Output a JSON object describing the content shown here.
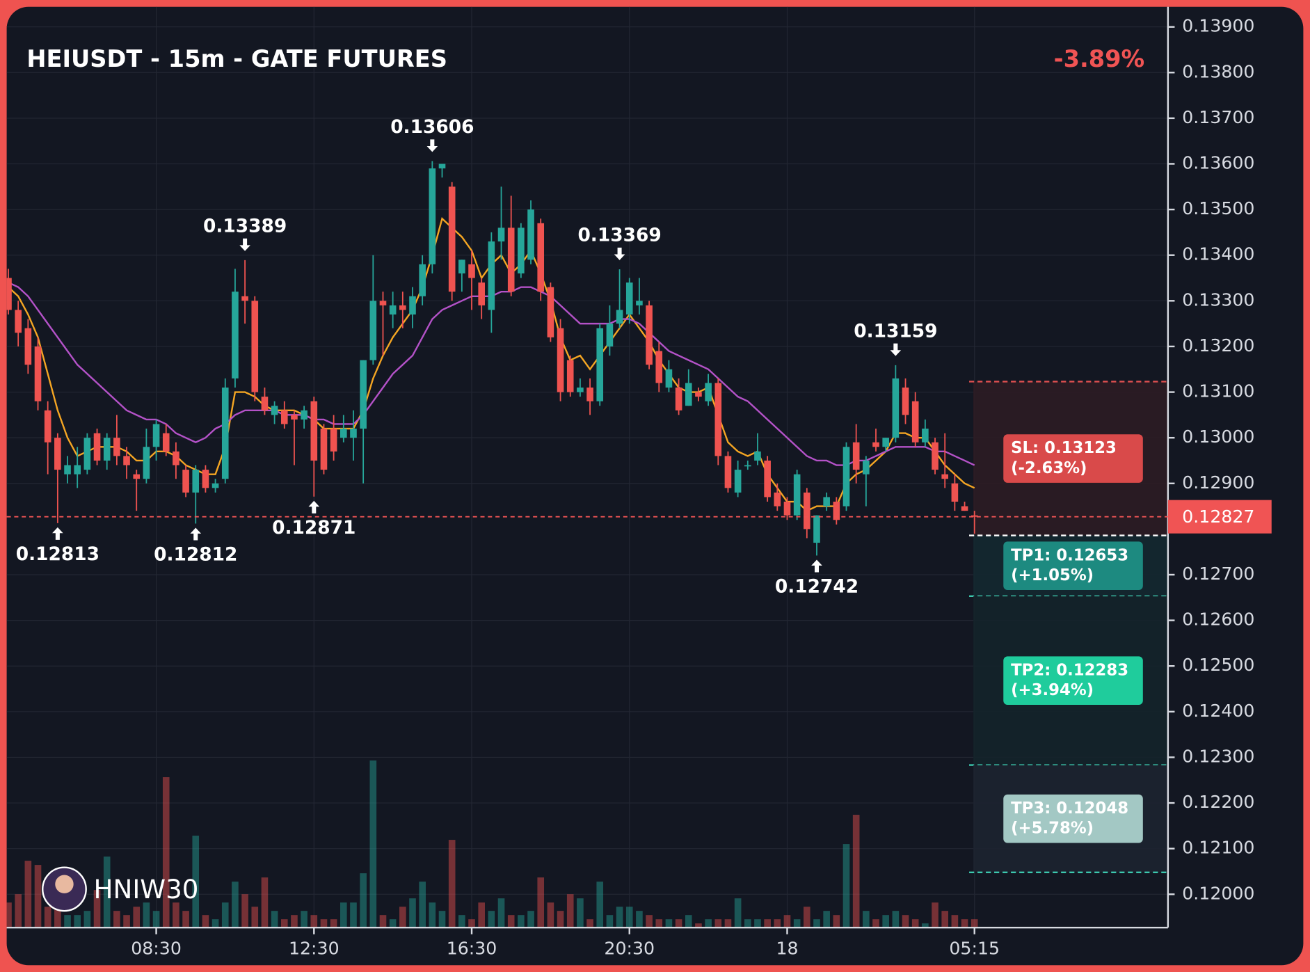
{
  "chart_data": {
    "type": "candlestick",
    "title": "HEIUSDT - 15m - GATE FUTURES",
    "change": "-3.89%",
    "watermark": "HNIW30",
    "up_color": "#26a69a",
    "down_color": "#ef5350",
    "grid": true,
    "ylim": [
      0.11927,
      0.13944
    ],
    "yticks": [
      {
        "value": 0.139,
        "label": "0.13900"
      },
      {
        "value": 0.138,
        "label": "0.13800"
      },
      {
        "value": 0.137,
        "label": "0.13700"
      },
      {
        "value": 0.136,
        "label": "0.13600"
      },
      {
        "value": 0.135,
        "label": "0.13500"
      },
      {
        "value": 0.134,
        "label": "0.13400"
      },
      {
        "value": 0.133,
        "label": "0.13300"
      },
      {
        "value": 0.132,
        "label": "0.13200"
      },
      {
        "value": 0.131,
        "label": "0.13100"
      },
      {
        "value": 0.13,
        "label": "0.13000"
      },
      {
        "value": 0.129,
        "label": "0.12900"
      },
      {
        "value": 0.127,
        "label": "0.12700"
      },
      {
        "value": 0.126,
        "label": "0.12600"
      },
      {
        "value": 0.125,
        "label": "0.12500"
      },
      {
        "value": 0.124,
        "label": "0.12400"
      },
      {
        "value": 0.123,
        "label": "0.12300"
      },
      {
        "value": 0.122,
        "label": "0.12200"
      },
      {
        "value": 0.121,
        "label": "0.12100"
      },
      {
        "value": 0.12,
        "label": "0.12000"
      }
    ],
    "categories": [
      null,
      null,
      null,
      null,
      null,
      null,
      null,
      null,
      null,
      null,
      null,
      null,
      null,
      null,
      null,
      "08:30",
      null,
      null,
      null,
      null,
      null,
      null,
      null,
      null,
      null,
      null,
      null,
      null,
      null,
      null,
      null,
      "12:30",
      null,
      null,
      null,
      null,
      null,
      null,
      null,
      null,
      null,
      null,
      null,
      null,
      null,
      null,
      null,
      "16:30",
      null,
      null,
      null,
      null,
      null,
      null,
      null,
      null,
      null,
      null,
      null,
      null,
      null,
      null,
      null,
      "20:30",
      null,
      null,
      null,
      null,
      null,
      null,
      null,
      null,
      null,
      null,
      null,
      null,
      null,
      null,
      null,
      "18",
      null,
      null,
      null,
      null,
      null,
      null,
      null,
      null,
      null,
      null,
      null,
      null,
      null,
      null,
      null,
      null,
      null,
      null,
      "05:15"
    ],
    "open": [
      0.1335,
      0.1328,
      0.1324,
      0.132,
      0.1306,
      0.13,
      0.1292,
      0.1292,
      0.1293,
      0.1301,
      0.1295,
      0.13,
      0.1296,
      0.1292,
      0.1291,
      0.1298,
      0.1301,
      0.1297,
      0.1293,
      0.1288,
      0.1293,
      0.1289,
      0.1291,
      0.1313,
      0.1331,
      0.133,
      0.1309,
      0.1305,
      0.1306,
      0.1305,
      0.1304,
      0.1308,
      0.1302,
      0.1302,
      0.13,
      0.13,
      0.1302,
      0.1317,
      0.133,
      0.1327,
      0.1329,
      0.1327,
      0.1331,
      0.1338,
      0.1359,
      0.1355,
      0.1336,
      0.1338,
      0.1334,
      0.1328,
      0.1343,
      0.1346,
      0.1336,
      0.1339,
      0.1347,
      0.1333,
      0.1324,
      0.1317,
      0.131,
      0.1311,
      0.1308,
      0.132,
      0.1325,
      0.1327,
      0.1329,
      0.1329,
      0.1319,
      0.1311,
      0.1311,
      0.1307,
      0.131,
      0.1308,
      0.1312,
      0.1296,
      0.1288,
      0.1294,
      0.1295,
      0.1295,
      0.1288,
      0.1286,
      0.1283,
      0.1288,
      0.1277,
      0.1285,
      0.1286,
      0.1285,
      0.1299,
      0.1292,
      0.1299,
      0.1298,
      0.13,
      0.1311,
      0.1308,
      0.1299,
      0.1299,
      0.1292,
      0.129,
      0.1285,
      0.1283
    ],
    "high": [
      0.1337,
      0.133,
      0.1326,
      0.1322,
      0.1308,
      0.1301,
      0.1296,
      0.1298,
      0.1301,
      0.1302,
      0.1301,
      0.1305,
      0.1298,
      0.1293,
      0.1302,
      0.1304,
      0.1303,
      0.1299,
      0.1294,
      0.1294,
      0.1294,
      0.1291,
      0.1313,
      0.1337,
      0.13389,
      0.1331,
      0.1311,
      0.1308,
      0.1308,
      0.1306,
      0.1307,
      0.1309,
      0.1303,
      0.1305,
      0.1305,
      0.1306,
      0.1317,
      0.134,
      0.1332,
      0.1332,
      0.1332,
      0.1333,
      0.134,
      0.13606,
      0.136,
      0.1356,
      0.1339,
      0.1341,
      0.1335,
      0.1345,
      0.1355,
      0.1353,
      0.1347,
      0.1352,
      0.1348,
      0.1334,
      0.1326,
      0.1318,
      0.1313,
      0.1313,
      0.1325,
      0.1329,
      0.13369,
      0.1335,
      0.1335,
      0.133,
      0.1321,
      0.1317,
      0.1313,
      0.1315,
      0.1311,
      0.1314,
      0.1313,
      0.1297,
      0.1295,
      0.1295,
      0.1301,
      0.1296,
      0.129,
      0.1287,
      0.1293,
      0.1289,
      0.1283,
      0.1288,
      0.1287,
      0.1299,
      0.1303,
      0.1296,
      0.1302,
      0.13,
      0.13159,
      0.1313,
      0.131,
      0.1304,
      0.13,
      0.1301,
      0.1292,
      0.1286,
      0.1284
    ],
    "low": [
      0.1327,
      0.132,
      0.1314,
      0.1306,
      0.1292,
      0.12813,
      0.129,
      0.1289,
      0.1292,
      0.1294,
      0.1293,
      0.1294,
      0.1291,
      0.1284,
      0.129,
      0.1295,
      0.1296,
      0.1291,
      0.1287,
      0.12812,
      0.1288,
      0.1288,
      0.129,
      0.1311,
      0.1325,
      0.1308,
      0.1305,
      0.1303,
      0.1302,
      0.1294,
      0.1302,
      0.12871,
      0.1292,
      0.1295,
      0.1299,
      0.1295,
      0.129,
      0.1316,
      0.1318,
      0.1324,
      0.1324,
      0.1324,
      0.1329,
      0.1336,
      0.1357,
      0.133,
      0.1332,
      0.1328,
      0.1326,
      0.1323,
      0.1339,
      0.1331,
      0.1335,
      0.1338,
      0.133,
      0.1321,
      0.1308,
      0.1309,
      0.1309,
      0.1305,
      0.1307,
      0.1318,
      0.1324,
      0.1325,
      0.1327,
      0.1315,
      0.131,
      0.131,
      0.1305,
      0.1307,
      0.1308,
      0.1307,
      0.1294,
      0.1288,
      0.1287,
      0.1293,
      0.1294,
      0.1286,
      0.1284,
      0.1282,
      0.1282,
      0.1278,
      0.12742,
      0.1284,
      0.1281,
      0.1284,
      0.129,
      0.1285,
      0.1297,
      0.1297,
      0.1299,
      0.1303,
      0.1298,
      0.1298,
      0.1292,
      0.1289,
      0.1284,
      0.1284,
      0.1279
    ],
    "close": [
      0.1328,
      0.1323,
      0.1316,
      0.1308,
      0.1299,
      0.1293,
      0.1294,
      0.1294,
      0.13,
      0.1295,
      0.13,
      0.1296,
      0.1294,
      0.1291,
      0.1298,
      0.1303,
      0.1297,
      0.1294,
      0.1288,
      0.1293,
      0.1289,
      0.129,
      0.1311,
      0.1332,
      0.133,
      0.131,
      0.1306,
      0.1307,
      0.1303,
      0.1304,
      0.1306,
      0.1295,
      0.1293,
      0.1297,
      0.1302,
      0.1302,
      0.1317,
      0.133,
      0.1329,
      0.1329,
      0.1328,
      0.1331,
      0.1338,
      0.1359,
      0.136,
      0.1332,
      0.1339,
      0.1335,
      0.1329,
      0.1343,
      0.1346,
      0.1332,
      0.1346,
      0.135,
      0.1332,
      0.1322,
      0.131,
      0.131,
      0.1311,
      0.1308,
      0.1324,
      0.1325,
      0.1328,
      0.1334,
      0.133,
      0.1316,
      0.1312,
      0.1315,
      0.1306,
      0.1312,
      0.1309,
      0.1312,
      0.1296,
      0.1289,
      0.1293,
      0.1294,
      0.1297,
      0.1287,
      0.1285,
      0.1283,
      0.1292,
      0.128,
      0.1283,
      0.1287,
      0.1282,
      0.1298,
      0.1293,
      0.1295,
      0.1298,
      0.13,
      0.1313,
      0.1305,
      0.1299,
      0.1302,
      0.1293,
      0.1291,
      0.1286,
      0.1284,
      0.12827
    ],
    "volume": [
      30,
      40,
      80,
      75,
      25,
      30,
      15,
      15,
      20,
      45,
      85,
      20,
      15,
      25,
      30,
      20,
      180,
      30,
      20,
      110,
      15,
      10,
      30,
      55,
      40,
      25,
      60,
      20,
      10,
      15,
      20,
      15,
      10,
      10,
      30,
      30,
      65,
      200,
      15,
      10,
      25,
      35,
      55,
      30,
      20,
      105,
      15,
      10,
      30,
      20,
      35,
      15,
      15,
      20,
      60,
      30,
      20,
      40,
      35,
      10,
      55,
      15,
      25,
      25,
      20,
      15,
      10,
      10,
      10,
      15,
      5,
      10,
      10,
      10,
      35,
      10,
      10,
      10,
      10,
      15,
      10,
      25,
      10,
      20,
      15,
      100,
      135,
      20,
      10,
      15,
      20,
      15,
      10,
      5,
      30,
      20,
      15,
      10,
      10
    ],
    "overlays": [
      {
        "color": "#f5a623",
        "values": [
          0.1333,
          0.1331,
          0.1327,
          0.1322,
          0.1314,
          0.1306,
          0.13,
          0.1296,
          0.1297,
          0.1298,
          0.1298,
          0.1298,
          0.1297,
          0.1295,
          0.1295,
          0.1297,
          0.1297,
          0.1296,
          0.1294,
          0.1293,
          0.1292,
          0.1292,
          0.1298,
          0.131,
          0.131,
          0.1309,
          0.1307,
          0.1306,
          0.1306,
          0.1306,
          0.1305,
          0.1304,
          0.1302,
          0.1302,
          0.1302,
          0.1302,
          0.1306,
          0.1313,
          0.1318,
          0.1322,
          0.1325,
          0.1328,
          0.1333,
          0.134,
          0.1348,
          0.1346,
          0.1344,
          0.1341,
          0.1335,
          0.1338,
          0.134,
          0.1336,
          0.1338,
          0.1341,
          0.1336,
          0.133,
          0.1322,
          0.1317,
          0.1318,
          0.1315,
          0.1318,
          0.1321,
          0.1324,
          0.1327,
          0.1324,
          0.1321,
          0.1317,
          0.1314,
          0.1311,
          0.131,
          0.131,
          0.1311,
          0.1305,
          0.1299,
          0.1297,
          0.1296,
          0.1297,
          0.1292,
          0.1289,
          0.1286,
          0.1286,
          0.1284,
          0.1285,
          0.1285,
          0.1285,
          0.129,
          0.1292,
          0.1293,
          0.1295,
          0.1297,
          0.1301,
          0.1301,
          0.13,
          0.13,
          0.1297,
          0.1294,
          0.1292,
          0.129,
          0.1289
        ]
      },
      {
        "color": "#b452c8",
        "values": [
          0.1334,
          0.1333,
          0.1331,
          0.1328,
          0.1325,
          0.1322,
          0.1319,
          0.1316,
          0.1314,
          0.1312,
          0.131,
          0.1308,
          0.1306,
          0.1305,
          0.1304,
          0.1304,
          0.1303,
          0.1301,
          0.13,
          0.1299,
          0.13,
          0.1302,
          0.1303,
          0.1305,
          0.1306,
          0.1306,
          0.1306,
          0.1306,
          0.1305,
          0.1305,
          0.1305,
          0.1304,
          0.1304,
          0.1303,
          0.1303,
          0.1303,
          0.1305,
          0.1308,
          0.1311,
          0.1314,
          0.1316,
          0.1318,
          0.1322,
          0.1326,
          0.1328,
          0.1329,
          0.133,
          0.1331,
          0.1331,
          0.1331,
          0.1332,
          0.1332,
          0.1333,
          0.1333,
          0.1332,
          0.1331,
          0.1329,
          0.1327,
          0.1325,
          0.1325,
          0.1325,
          0.1325,
          0.1326,
          0.1326,
          0.1325,
          0.1323,
          0.1321,
          0.1319,
          0.1318,
          0.1317,
          0.1316,
          0.1315,
          0.1313,
          0.1311,
          0.1309,
          0.1308,
          0.1306,
          0.1304,
          0.1302,
          0.13,
          0.1298,
          0.1296,
          0.1295,
          0.1295,
          0.1294,
          0.1294,
          0.1295,
          0.1295,
          0.1296,
          0.1297,
          0.1298,
          0.1298,
          0.1298,
          0.1298,
          0.1297,
          0.1297,
          0.1296,
          0.1295,
          0.1294
        ]
      }
    ],
    "annotations": [
      {
        "type": "low",
        "value": 0.12813
      },
      {
        "type": "low",
        "value": 0.12812
      },
      {
        "type": "high",
        "value": 0.13389
      },
      {
        "type": "low",
        "value": 0.12871
      },
      {
        "type": "high",
        "value": 0.13606
      },
      {
        "type": "high",
        "value": 0.13369
      },
      {
        "type": "low",
        "value": 0.12742
      },
      {
        "type": "high",
        "value": 0.13159
      }
    ],
    "current_price": 0.12827,
    "current_color": "#f05454",
    "entry_price": 0.12786,
    "levels": [
      {
        "value": 0.13123,
        "label": "SL: 0.13123",
        "change": "(-2.63%)",
        "color": "#d94a4a",
        "line_color": "#e05050",
        "zone_color": "#2c1c24"
      },
      {
        "value": 0.12653,
        "label": "TP1: 0.12653",
        "change": "(+1.05%)",
        "color": "#1d8a80",
        "line_color": "#3cc8ae",
        "zone_color": "#142830"
      },
      {
        "value": 0.12283,
        "label": "TP2: 0.12283",
        "change": "(+3.94%)",
        "color": "#1fcc9c",
        "line_color": "#3cc8ae",
        "zone_color": "#14232a"
      },
      {
        "value": 0.12048,
        "label": "TP3: 0.12048",
        "change": "(+5.78%)",
        "color": "#a3c8c4",
        "line_color": "#3cc8ae",
        "zone_color": "#1d2430"
      }
    ]
  }
}
